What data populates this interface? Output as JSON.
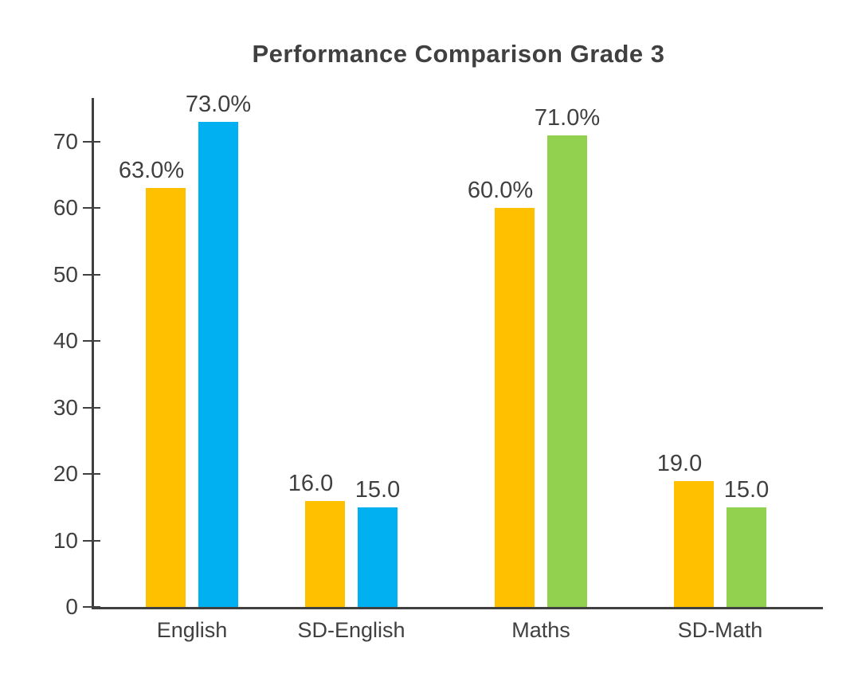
{
  "chart_data": {
    "type": "bar",
    "title": "Performance Comparison Grade 3",
    "xlabel": "",
    "ylabel": "",
    "categories": [
      "English",
      "SD-English",
      "Maths",
      "SD-Math"
    ],
    "groups": [
      {
        "category": "English",
        "bars": [
          {
            "value": 63,
            "label": "63.0%",
            "color": "#FFC000",
            "series_hint": "orange"
          },
          {
            "value": 73,
            "label": "73.0%",
            "color": "#00B0F0",
            "series_hint": "blue"
          }
        ]
      },
      {
        "category": "SD-English",
        "bars": [
          {
            "value": 16,
            "label": "16.0",
            "color": "#FFC000",
            "series_hint": "orange"
          },
          {
            "value": 15,
            "label": "15.0",
            "color": "#00B0F0",
            "series_hint": "blue"
          }
        ]
      },
      {
        "category": "Maths",
        "bars": [
          {
            "value": 60,
            "label": "60.0%",
            "color": "#FFC000",
            "series_hint": "orange"
          },
          {
            "value": 71,
            "label": "71.0%",
            "color": "#92D050",
            "series_hint": "green"
          }
        ]
      },
      {
        "category": "SD-Math",
        "bars": [
          {
            "value": 19,
            "label": "19.0",
            "color": "#FFC000",
            "series_hint": "orange"
          },
          {
            "value": 15,
            "label": "15.0",
            "color": "#92D050",
            "series_hint": "green"
          }
        ]
      }
    ],
    "y_ticks": [
      0,
      10,
      20,
      30,
      40,
      50,
      60,
      70
    ],
    "ylim": [
      0,
      76.6
    ],
    "grid": false,
    "legend": "none",
    "colors": {
      "orange": "#FFC000",
      "blue": "#00B0F0",
      "green": "#92D050",
      "axis": "#404040",
      "text": "#404040",
      "background": "#FFFFFF"
    }
  }
}
